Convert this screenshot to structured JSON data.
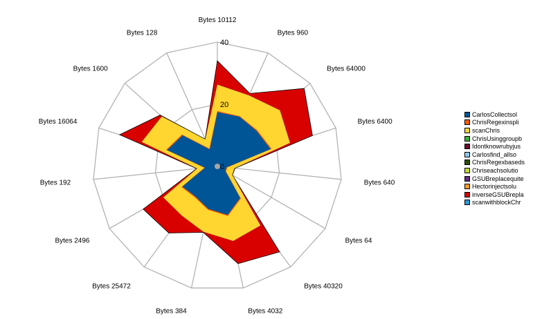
{
  "chart_data": {
    "type": "radar",
    "categories": [
      "Bytes 10112",
      "Bytes 960",
      "Bytes 64000",
      "Bytes 6400",
      "Bytes 640",
      "Bytes 64",
      "Bytes 40320",
      "Bytes 4032",
      "Bytes 384",
      "Bytes 25472",
      "Bytes 2496",
      "Bytes 192",
      "Bytes 16064",
      "Bytes 1600",
      "Bytes 128"
    ],
    "rmax": 40,
    "ticks": [
      0,
      20,
      40
    ],
    "tick_labels": [
      "0",
      "20",
      "40"
    ],
    "grid": true,
    "legend_position": "right",
    "stacked": true,
    "series": [
      {
        "name": "CarlosCollectsol",
        "color": "#005597",
        "values": [
          17.5,
          17.5,
          17,
          18,
          3,
          3,
          12.5,
          16,
          14,
          12,
          13,
          4,
          17,
          15,
          6
        ]
      },
      {
        "name": "ChrisRegexinspli",
        "color": "#FF5A00",
        "values": [
          0.3,
          0.2,
          0.3,
          0.3,
          0.2,
          0.2,
          0.3,
          0.3,
          0.3,
          0.3,
          0.3,
          0.2,
          0.3,
          0.3,
          0.3
        ]
      },
      {
        "name": "scanChris",
        "color": "#FFD530",
        "values": [
          8.5,
          7.3,
          9.7,
          6.2,
          2.3,
          2.3,
          10.7,
          8.2,
          7.2,
          7.2,
          6.7,
          2.3,
          8.2,
          8.7,
          3.2
        ]
      },
      {
        "name": "ChrisUsinggroupb",
        "color": "#3BAF38",
        "values": [
          0,
          0,
          0,
          0,
          0,
          0,
          0,
          0,
          0,
          0,
          0,
          0,
          0,
          0,
          0
        ]
      },
      {
        "name": "Idontknowrubyjus",
        "color": "#6E0B2C",
        "values": [
          0,
          0,
          0,
          0,
          0,
          0,
          0,
          0,
          0,
          0,
          0,
          0,
          0,
          0,
          0
        ]
      },
      {
        "name": "Carlosfind_allso",
        "color": "#8DC8F0",
        "values": [
          0,
          0,
          0,
          0,
          0,
          0,
          0,
          0,
          0,
          0,
          0,
          0,
          0,
          0,
          0
        ]
      },
      {
        "name": "ChrisRegexbaseds",
        "color": "#2E4D12",
        "values": [
          0,
          0,
          0,
          0,
          0,
          0,
          0,
          0,
          0,
          0,
          0,
          0,
          0,
          0,
          0
        ]
      },
      {
        "name": "Chriseachsolutio",
        "color": "#C2D92E",
        "values": [
          0,
          0,
          0,
          0,
          0,
          0,
          0,
          0,
          0,
          0,
          0,
          0,
          0,
          0,
          0
        ]
      },
      {
        "name": "GSUBreplacequite",
        "color": "#5E2B86",
        "values": [
          0,
          0,
          0,
          0,
          0,
          0,
          0,
          0,
          0,
          0,
          0,
          0,
          0,
          0,
          0
        ]
      },
      {
        "name": "Hectorinjectsolu",
        "color": "#FF9A1E",
        "values": [
          0,
          0,
          0,
          0,
          0,
          0,
          0,
          0,
          0,
          0,
          0,
          0,
          0,
          0,
          0
        ]
      },
      {
        "name": "inverseGSUBrepla",
        "color": "#D90000",
        "values": [
          7.7,
          0.7,
          10.5,
          7.6,
          0.2,
          0.1,
          10.5,
          7.5,
          0.2,
          7,
          7.5,
          0.2,
          7.5,
          0.7,
          0.1
        ]
      },
      {
        "name": "scanwithblockChr",
        "color": "#2E98D6",
        "values": [
          0,
          0,
          0,
          0,
          0,
          0,
          0,
          0,
          0,
          0,
          0,
          0,
          0,
          0,
          0
        ]
      }
    ]
  }
}
